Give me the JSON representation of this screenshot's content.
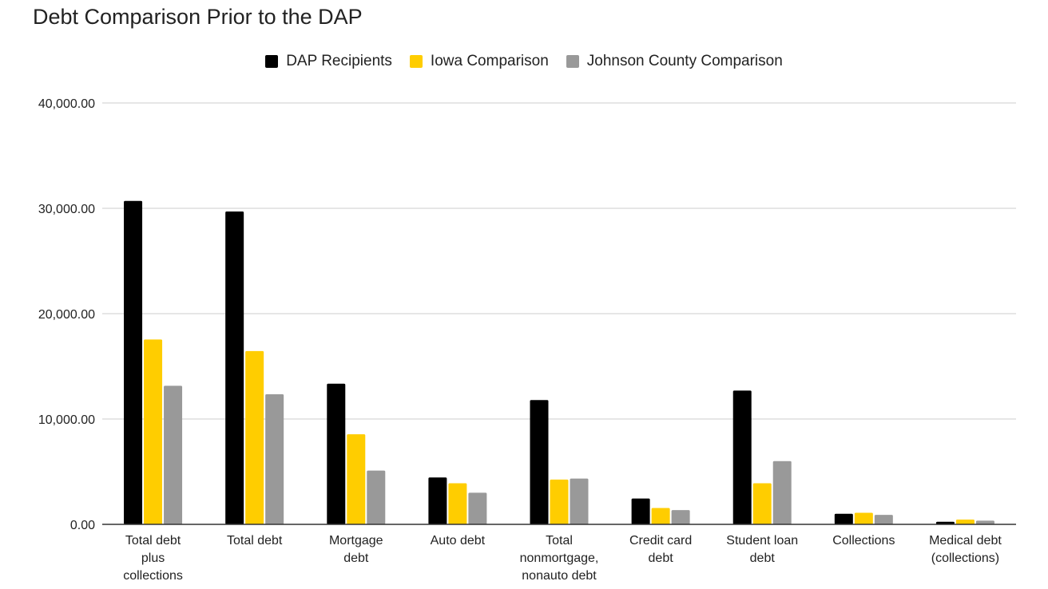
{
  "chart_data": {
    "type": "bar",
    "title": "Debt Comparison Prior to the DAP",
    "xlabel": "",
    "ylabel": "",
    "ylim": [
      0,
      40000
    ],
    "yticks": [
      0,
      10000,
      20000,
      30000,
      40000
    ],
    "ytick_labels": [
      "0.00",
      "10,000.00",
      "20,000.00",
      "30,000.00",
      "40,000.00"
    ],
    "grid": true,
    "legend_position": "top-center",
    "categories": [
      [
        "Total debt",
        "plus",
        "collections"
      ],
      [
        "Total debt"
      ],
      [
        "Mortgage",
        "debt"
      ],
      [
        "Auto debt"
      ],
      [
        "Total",
        "nonmortgage,",
        "nonauto debt"
      ],
      [
        "Credit card",
        "debt"
      ],
      [
        "Student loan",
        "debt"
      ],
      [
        "Collections"
      ],
      [
        "Medical debt",
        "(collections)"
      ]
    ],
    "series": [
      {
        "name": "DAP Recipients",
        "color": "#000000",
        "values": [
          30700,
          29700,
          13350,
          4450,
          11800,
          2450,
          12700,
          1000,
          250
        ]
      },
      {
        "name": "Iowa Comparison",
        "color": "#ffcd00",
        "values": [
          17550,
          16450,
          8550,
          3900,
          4250,
          1550,
          3900,
          1100,
          450
        ]
      },
      {
        "name": "Johnson County Comparison",
        "color": "#999999",
        "values": [
          13150,
          12350,
          5100,
          3000,
          4350,
          1350,
          6000,
          900,
          350
        ]
      }
    ]
  }
}
